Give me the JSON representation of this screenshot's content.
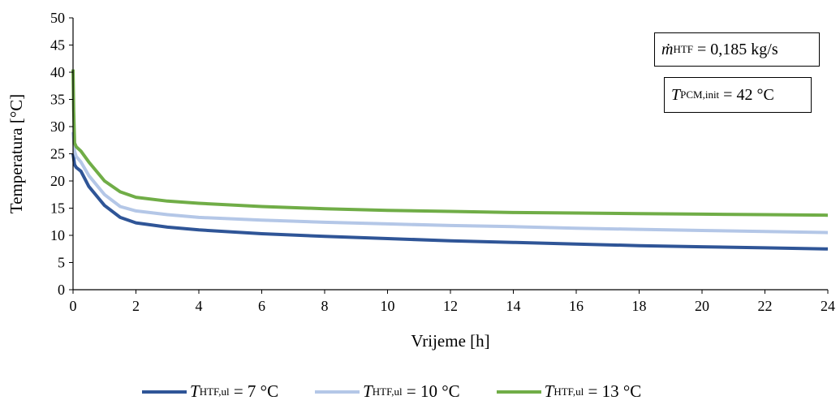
{
  "chart_data": {
    "type": "line",
    "xlabel": "Vrijeme [h]",
    "ylabel": "Temperatura [°C]",
    "xlim": [
      0,
      24
    ],
    "ylim": [
      0,
      50
    ],
    "xticks": [
      "0",
      "2",
      "4",
      "6",
      "8",
      "10",
      "12",
      "14",
      "16",
      "18",
      "20",
      "22",
      "24"
    ],
    "yticks": [
      "0",
      "5",
      "10",
      "15",
      "20",
      "25",
      "30",
      "35",
      "40",
      "45",
      "50"
    ],
    "grid": false,
    "legend_position": "bottom",
    "series": [
      {
        "name_sym": "T",
        "name_sub": "HTF,ul",
        "name_rest": " = 7 °C",
        "color": "#2f5597",
        "x": [
          0,
          0.05,
          0.1,
          0.25,
          0.5,
          1,
          1.5,
          2,
          3,
          4,
          6,
          8,
          10,
          12,
          14,
          16,
          18,
          20,
          22,
          24
        ],
        "y": [
          25,
          23,
          22.5,
          21.8,
          19,
          15.5,
          13.3,
          12.3,
          11.5,
          11.0,
          10.3,
          9.8,
          9.4,
          9.0,
          8.7,
          8.4,
          8.1,
          7.9,
          7.7,
          7.5
        ]
      },
      {
        "name_sym": "T",
        "name_sub": "HTF,ul",
        "name_rest": " = 10 °C",
        "color": "#b4c7e7",
        "x": [
          0,
          0.05,
          0.1,
          0.25,
          0.5,
          1,
          1.5,
          2,
          3,
          4,
          6,
          8,
          10,
          12,
          14,
          16,
          18,
          20,
          22,
          24
        ],
        "y": [
          29,
          25.5,
          24.5,
          23.5,
          21,
          17.5,
          15.3,
          14.5,
          13.8,
          13.3,
          12.8,
          12.4,
          12.1,
          11.8,
          11.6,
          11.3,
          11.1,
          10.9,
          10.7,
          10.5
        ]
      },
      {
        "name_sym": "T",
        "name_sub": "HTF,ul",
        "name_rest": " = 13 °C",
        "color": "#70ad47",
        "x": [
          0,
          0.02,
          0.05,
          0.1,
          0.25,
          0.5,
          1,
          1.5,
          2,
          3,
          4,
          6,
          8,
          10,
          12,
          14,
          16,
          18,
          20,
          22,
          24
        ],
        "y": [
          40.5,
          33,
          27,
          26.3,
          25.5,
          23.5,
          20,
          18,
          17,
          16.3,
          15.9,
          15.3,
          14.9,
          14.6,
          14.4,
          14.2,
          14.1,
          14.0,
          13.9,
          13.8,
          13.7
        ]
      }
    ],
    "annotations": [
      {
        "sym": "ṁ",
        "sub": "HTF",
        "rest": " = 0,185 kg/s"
      },
      {
        "sym": "T",
        "sub": "PCM,init",
        "rest": " = 42 °C"
      }
    ]
  }
}
